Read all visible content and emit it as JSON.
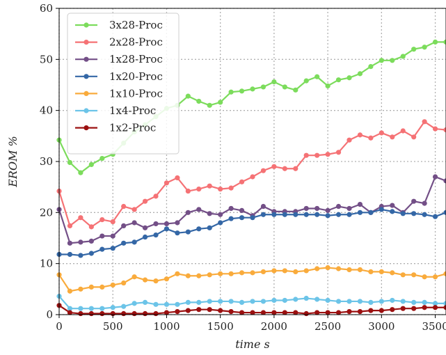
{
  "chart_data": {
    "type": "line",
    "title": "",
    "xlabel": "time s",
    "ylabel": "EROM %",
    "xlim": [
      0,
      3600
    ],
    "ylim": [
      0,
      60
    ],
    "xticks": [
      0,
      500,
      1000,
      1500,
      2000,
      2500,
      3000,
      3500
    ],
    "yticks": [
      0,
      10,
      20,
      30,
      40,
      50,
      60
    ],
    "grid": true,
    "legend_position": "top-left",
    "x": [
      0,
      100,
      200,
      300,
      400,
      500,
      600,
      700,
      800,
      900,
      1000,
      1100,
      1200,
      1300,
      1400,
      1500,
      1600,
      1700,
      1800,
      1900,
      2000,
      2100,
      2200,
      2300,
      2400,
      2500,
      2600,
      2700,
      2800,
      2900,
      3000,
      3100,
      3200,
      3300,
      3400,
      3500,
      3600
    ],
    "series": [
      {
        "name": "3x28-Proc",
        "color": "#7cdc5c",
        "values": [
          34.2,
          29.8,
          27.8,
          29.4,
          30.6,
          31.4,
          33.6,
          35.8,
          37.2,
          38.8,
          40.4,
          41.0,
          42.8,
          41.8,
          41.0,
          41.6,
          43.6,
          43.8,
          44.2,
          44.6,
          45.6,
          44.6,
          44.0,
          45.8,
          46.6,
          44.8,
          46.0,
          46.4,
          47.2,
          48.6,
          49.8,
          49.8,
          50.6,
          52.0,
          52.4,
          53.4,
          53.4
        ]
      },
      {
        "name": "2x28-Proc",
        "color": "#f57275",
        "values": [
          24.2,
          17.4,
          19.0,
          17.2,
          18.6,
          18.2,
          21.2,
          20.6,
          22.2,
          23.2,
          25.8,
          26.8,
          24.2,
          24.6,
          25.2,
          24.6,
          24.8,
          26.0,
          27.0,
          28.2,
          29.0,
          28.6,
          28.6,
          31.2,
          31.2,
          31.4,
          31.8,
          34.2,
          35.2,
          34.6,
          35.6,
          34.8,
          36.0,
          34.8,
          37.8,
          36.4,
          36.2
        ]
      },
      {
        "name": "1x28-Proc",
        "color": "#734f87",
        "values": [
          20.6,
          14.0,
          14.2,
          14.4,
          15.4,
          15.4,
          17.4,
          18.0,
          17.0,
          17.8,
          17.8,
          18.0,
          20.0,
          20.6,
          19.8,
          19.6,
          20.8,
          20.4,
          19.4,
          21.2,
          20.2,
          20.2,
          20.2,
          20.8,
          20.8,
          20.4,
          21.2,
          20.8,
          21.6,
          20.0,
          21.2,
          21.4,
          20.0,
          22.2,
          21.8,
          27.0,
          26.2
        ]
      },
      {
        "name": "1x20-Proc",
        "color": "#3467a6",
        "values": [
          11.8,
          11.8,
          11.6,
          12.0,
          12.8,
          13.0,
          14.0,
          14.2,
          15.2,
          15.6,
          16.8,
          16.0,
          16.2,
          16.8,
          17.0,
          18.0,
          18.8,
          19.0,
          19.0,
          19.6,
          19.6,
          19.6,
          19.6,
          19.6,
          19.6,
          19.4,
          19.6,
          19.6,
          20.0,
          20.0,
          20.6,
          20.2,
          19.8,
          19.8,
          19.6,
          19.2,
          20.0
        ]
      },
      {
        "name": "1x10-Proc",
        "color": "#f9ab3c",
        "values": [
          7.8,
          4.6,
          5.0,
          5.4,
          5.4,
          5.8,
          6.2,
          7.4,
          6.8,
          6.6,
          7.0,
          8.0,
          7.6,
          7.6,
          7.8,
          8.0,
          8.0,
          8.2,
          8.2,
          8.4,
          8.6,
          8.6,
          8.4,
          8.6,
          9.0,
          9.2,
          9.0,
          8.8,
          8.8,
          8.4,
          8.4,
          8.2,
          7.8,
          7.8,
          7.4,
          7.4,
          8.0
        ]
      },
      {
        "name": "1x4-Proc",
        "color": "#6cc4e8",
        "values": [
          3.6,
          1.2,
          1.2,
          1.2,
          1.2,
          1.4,
          1.6,
          2.2,
          2.4,
          2.0,
          2.0,
          2.0,
          2.4,
          2.4,
          2.6,
          2.6,
          2.6,
          2.4,
          2.6,
          2.6,
          2.8,
          2.8,
          3.0,
          3.2,
          3.0,
          2.8,
          2.6,
          2.6,
          2.6,
          2.4,
          2.6,
          2.8,
          2.6,
          2.4,
          2.4,
          2.2,
          2.2
        ]
      },
      {
        "name": "1x2-Proc",
        "color": "#9b1010",
        "values": [
          1.8,
          0.4,
          0.2,
          0.2,
          0.2,
          0.2,
          0.2,
          0.2,
          0.2,
          0.2,
          0.4,
          0.6,
          0.8,
          1.0,
          1.0,
          0.8,
          0.6,
          0.4,
          0.4,
          0.4,
          0.4,
          0.4,
          0.4,
          0.2,
          0.4,
          0.4,
          0.4,
          0.6,
          0.6,
          0.8,
          0.8,
          1.0,
          1.2,
          1.2,
          1.4,
          1.4,
          1.4
        ]
      }
    ]
  }
}
